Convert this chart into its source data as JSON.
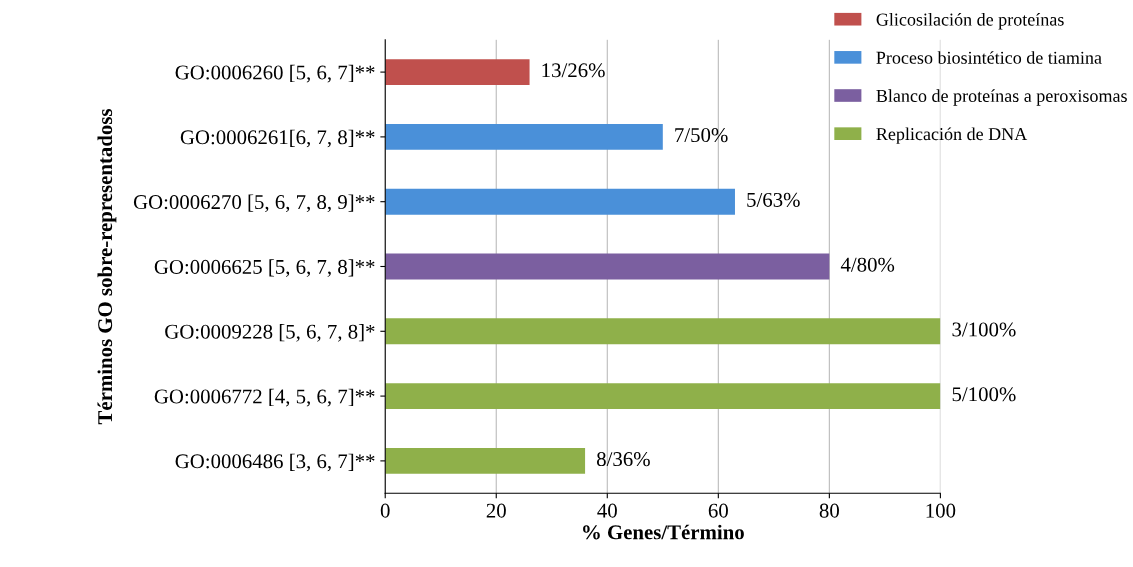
{
  "chart_data": {
    "type": "bar",
    "orientation": "horizontal",
    "ylabel": "Términos GO sobre-representadoss",
    "xlabel": "% Genes/Término",
    "categories": [
      "GO:0006260 [5, 6, 7]**",
      "GO:0006261[6, 7, 8]**",
      "GO:0006270 [5, 6, 7, 8, 9]**",
      "GO:0006625 [5, 6, 7, 8]**",
      "GO:0009228 [5, 6, 7, 8]*",
      "GO:0006772 [4, 5, 6, 7]**",
      "GO:0006486 [3, 6, 7]**"
    ],
    "series": [
      {
        "name": "Glicosilación de proteínas",
        "color": "#c0504d",
        "values": [
          26,
          null,
          null,
          null,
          null,
          null,
          null
        ],
        "value_labels": [
          "13/26%",
          null,
          null,
          null,
          null,
          null,
          null
        ]
      },
      {
        "name": "Proceso biosintético de tiamina",
        "color": "#4a90d9",
        "values": [
          null,
          50,
          63,
          null,
          null,
          null,
          null
        ],
        "value_labels": [
          null,
          "7/50%",
          "5/63%",
          null,
          null,
          null,
          null
        ]
      },
      {
        "name": "Blanco de proteínas a peroxisomas",
        "color": "#7b5fa0",
        "values": [
          null,
          null,
          null,
          80,
          null,
          null,
          null
        ],
        "value_labels": [
          null,
          null,
          null,
          "4/80%",
          null,
          null,
          null
        ]
      },
      {
        "name": "Replicación de DNA",
        "color": "#8fb04a",
        "values": [
          null,
          null,
          null,
          null,
          100,
          100,
          36
        ],
        "value_labels": [
          null,
          null,
          null,
          null,
          "3/100%",
          "5/100%",
          "8/36%"
        ]
      }
    ],
    "xlim": [
      0,
      100
    ],
    "xticks": [
      0,
      20,
      40,
      60,
      80,
      100
    ],
    "grid": "x",
    "legend": "right"
  }
}
